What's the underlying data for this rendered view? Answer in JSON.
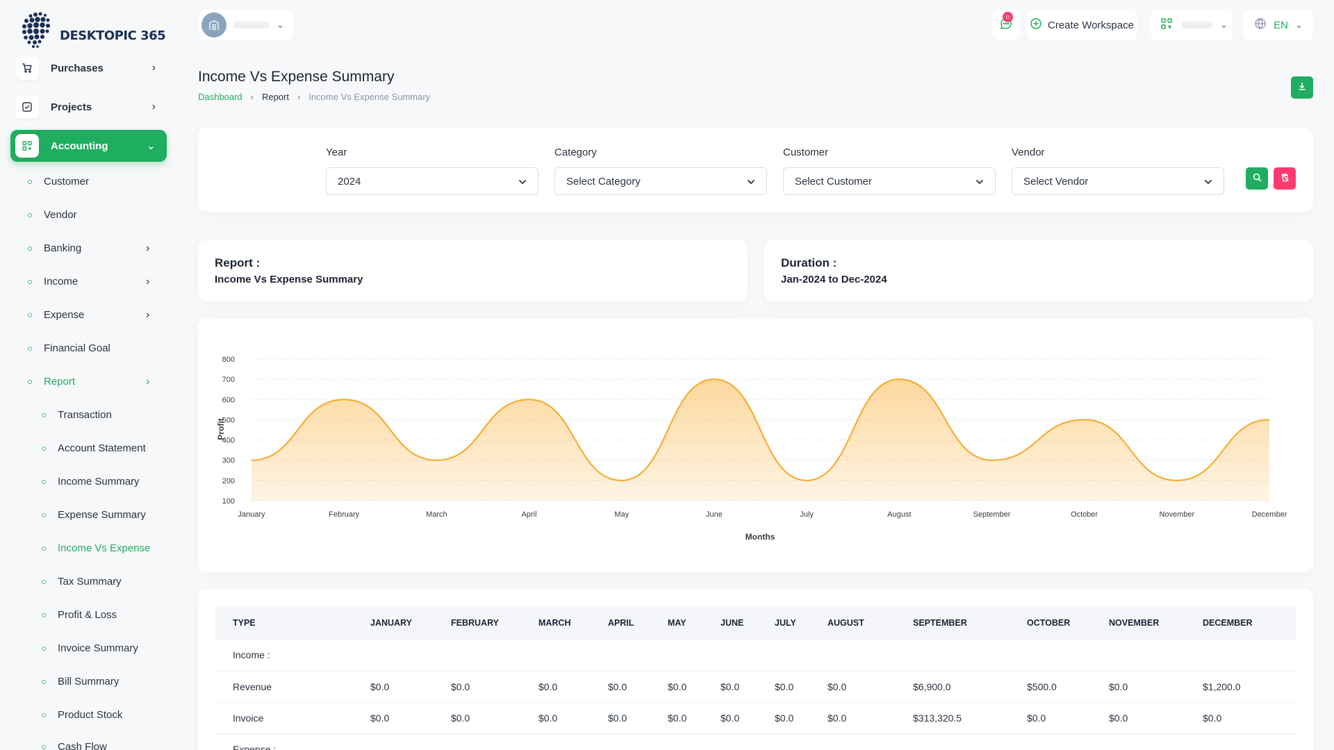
{
  "brand": {
    "name": "DESKTOPIC 365"
  },
  "sidebar": {
    "main": [
      {
        "label": "Purchases",
        "icon": "cart-icon"
      },
      {
        "label": "Projects",
        "icon": "checkbox-icon"
      },
      {
        "label": "Accounting",
        "icon": "apps-icon"
      }
    ],
    "accounting_items": [
      "Customer",
      "Vendor",
      "Banking",
      "Income",
      "Expense",
      "Financial Goal",
      "Report"
    ],
    "report_items": [
      "Transaction",
      "Account Statement",
      "Income Summary",
      "Expense Summary",
      "Income Vs Expense",
      "Tax Summary",
      "Profit & Loss",
      "Invoice Summary",
      "Bill Summary",
      "Product Stock",
      "Cash Flow"
    ]
  },
  "header": {
    "notification_count": "0",
    "create_workspace": "Create Workspace",
    "language": "EN"
  },
  "page": {
    "title": "Income Vs Expense Summary",
    "breadcrumb": [
      "Dashboard",
      "Report",
      "Income Vs Expense Summary"
    ]
  },
  "filters": {
    "year_label": "Year",
    "year_value": "2024",
    "category_label": "Category",
    "category_value": "Select Category",
    "customer_label": "Customer",
    "customer_value": "Select Customer",
    "vendor_label": "Vendor",
    "vendor_value": "Select Vendor"
  },
  "report_info": {
    "report_label": "Report :",
    "report_value": "Income Vs Expense Summary",
    "duration_label": "Duration :",
    "duration_value": "Jan-2024 to Dec-2024"
  },
  "chart_data": {
    "type": "area",
    "x": [
      "January",
      "February",
      "March",
      "April",
      "May",
      "June",
      "July",
      "August",
      "September",
      "October",
      "November",
      "December"
    ],
    "series": [
      {
        "values": [
          300,
          600,
          300,
          600,
          200,
          700,
          200,
          700,
          300,
          500,
          200,
          500
        ]
      }
    ],
    "xlabel": "Months",
    "ylabel": "Profit",
    "ylim": [
      100,
      800
    ],
    "yticks": [
      800,
      700,
      600,
      500,
      400,
      300,
      200,
      100
    ],
    "color": "#f9a825",
    "grid": true
  },
  "table": {
    "headers": [
      "TYPE",
      "JANUARY",
      "FEBRUARY",
      "MARCH",
      "APRIL",
      "MAY",
      "JUNE",
      "JULY",
      "AUGUST",
      "SEPTEMBER",
      "OCTOBER",
      "NOVEMBER",
      "DECEMBER"
    ],
    "income_label": "Income :",
    "rows": [
      [
        "Revenue",
        "$0.0",
        "$0.0",
        "$0.0",
        "$0.0",
        "$0.0",
        "$0.0",
        "$0.0",
        "$0.0",
        "$6,900.0",
        "$500.0",
        "$0.0",
        "$1,200.0"
      ],
      [
        "Invoice",
        "$0.0",
        "$0.0",
        "$0.0",
        "$0.0",
        "$0.0",
        "$0.0",
        "$0.0",
        "$0.0",
        "$313,320.5",
        "$0.0",
        "$0.0",
        "$0.0"
      ]
    ],
    "expense_label": "Expense :"
  },
  "colors": {
    "primary": "#1fad5f",
    "danger": "#ff3a6e",
    "chart": "#f9a825"
  }
}
